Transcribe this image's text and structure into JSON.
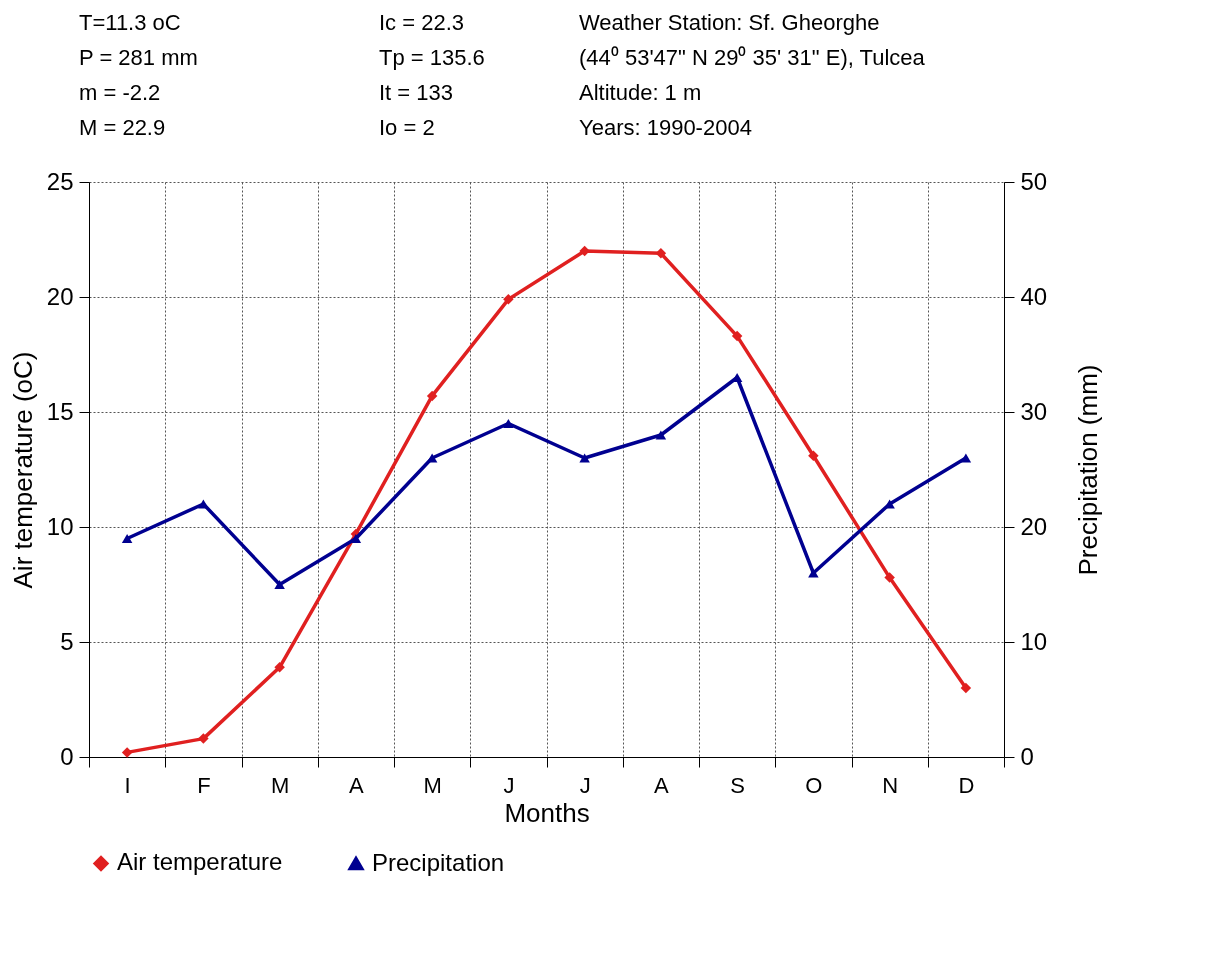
{
  "chart_data": {
    "type": "line",
    "xlabel": "Months",
    "ylabel": "Air temperature (oC)",
    "y2label": "Precipitation (mm)",
    "categories": [
      "I",
      "F",
      "M",
      "A",
      "M",
      "J",
      "J",
      "A",
      "S",
      "O",
      "N",
      "D"
    ],
    "series": [
      {
        "name": "Air temperature",
        "color": "#e02020",
        "marker": "diamond",
        "values": [
          0.2,
          0.8,
          3.9,
          9.7,
          15.7,
          19.9,
          22.0,
          21.9,
          18.3,
          13.1,
          7.8,
          3.0
        ]
      },
      {
        "name": "Precipitation",
        "color": "#000090",
        "marker": "triangle",
        "axis": "y2",
        "values": [
          19,
          22,
          15,
          19,
          26,
          29,
          26,
          28,
          33,
          16,
          22,
          26
        ]
      }
    ],
    "ylim": [
      0,
      25
    ],
    "yticks": [
      0,
      5,
      10,
      15,
      20,
      25
    ],
    "y2lim": [
      0,
      50
    ],
    "y2ticks": [
      0,
      10,
      20,
      30,
      40,
      50
    ],
    "grid": true,
    "legend": "bottom",
    "line_style": "solid",
    "annotations": [
      "T=11.3 oC",
      "Ic = 22.3",
      "Weather Station: Sf. Gheorghe",
      "P = 281 mm",
      "Tp = 135.6",
      "(44⁰ 53'47\" N 29⁰ 35' 31\" E), Tulcea",
      "m = -2.2",
      "It = 133",
      "Altitude: 1 m",
      "M = 22.9",
      "Io = 2",
      "Years: 1990-2004"
    ]
  }
}
